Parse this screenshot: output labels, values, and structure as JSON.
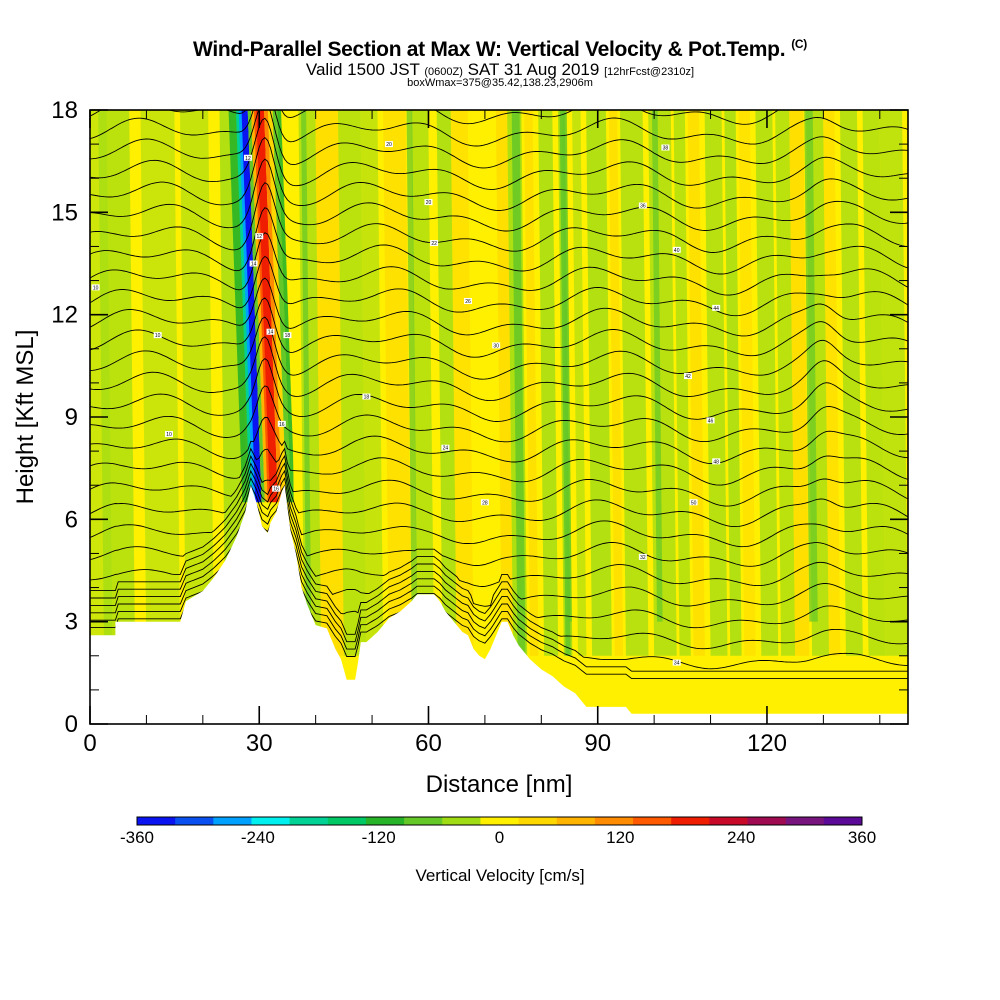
{
  "header": {
    "title": "Wind-Parallel Section at Max W: Vertical Velocity & Pot.Temp.",
    "copyright": "(C)",
    "valid_a": "Valid 1500 JST",
    "valid_b": "(0600Z)",
    "valid_c": "SAT 31 Aug 2019",
    "valid_d": "[12hrFcst@2310z]",
    "box_info": "boxWmax=375@35.42,138.23,2906m"
  },
  "chart_data": {
    "type": "heatmap",
    "title": "Wind-Parallel Section at Max W: Vertical Velocity & Pot.Temp.",
    "xlabel": "Distance [nm]",
    "ylabel": "Height [Kft MSL]",
    "xlim": [
      0,
      145
    ],
    "ylim": [
      0,
      18
    ],
    "x_ticks": [
      0,
      30,
      60,
      90,
      120
    ],
    "y_ticks": [
      0,
      3,
      6,
      9,
      12,
      15,
      18
    ],
    "grid": false,
    "colorbar": {
      "label": "Vertical Velocity [cm/s]",
      "placement": "bottom",
      "range": [
        -360,
        360
      ],
      "tick_values": [
        -360,
        -240,
        -120,
        0,
        120,
        240,
        360
      ],
      "colors": [
        "#0a14f0",
        "#0a50f0",
        "#00a0ff",
        "#00f0f0",
        "#00d296",
        "#00c864",
        "#28b428",
        "#64c828",
        "#a0dc14",
        "#fff000",
        "#ffd700",
        "#ffb400",
        "#ff8c00",
        "#ff5a00",
        "#f01e00",
        "#c80a28",
        "#a00a50",
        "#78147d",
        "#5a0a96"
      ]
    },
    "terrain_height_kft": [
      [
        0,
        2.6
      ],
      [
        4.5,
        2.6
      ],
      [
        4.5,
        3.0
      ],
      [
        16,
        3.0
      ],
      [
        17,
        3.6
      ],
      [
        20,
        3.9
      ],
      [
        22,
        4.3
      ],
      [
        24,
        4.8
      ],
      [
        26,
        5.5
      ],
      [
        27.5,
        6.2
      ],
      [
        28.5,
        7.0
      ],
      [
        29.5,
        6.5
      ],
      [
        30.5,
        5.8
      ],
      [
        31.5,
        5.6
      ],
      [
        32,
        5.9
      ],
      [
        33,
        6.2
      ],
      [
        34,
        6.8
      ],
      [
        34.5,
        7.0
      ],
      [
        35.5,
        5.7
      ],
      [
        36.5,
        5.0
      ],
      [
        37.5,
        4.0
      ],
      [
        38.5,
        3.5
      ],
      [
        40,
        2.9
      ],
      [
        42,
        2.8
      ],
      [
        43.5,
        2.2
      ],
      [
        44.5,
        1.9
      ],
      [
        45.5,
        1.3
      ],
      [
        46,
        1.3
      ],
      [
        47,
        1.3
      ],
      [
        47.5,
        1.8
      ],
      [
        48,
        2.4
      ],
      [
        49,
        2.4
      ],
      [
        51,
        2.7
      ],
      [
        52,
        2.9
      ],
      [
        53,
        3.1
      ],
      [
        55,
        3.3
      ],
      [
        57,
        3.6
      ],
      [
        58,
        3.8
      ],
      [
        61,
        3.8
      ],
      [
        62,
        3.6
      ],
      [
        63,
        3.3
      ],
      [
        64,
        3.1
      ],
      [
        66,
        2.7
      ],
      [
        67,
        2.6
      ],
      [
        68,
        2.2
      ],
      [
        69,
        2.0
      ],
      [
        70,
        1.9
      ],
      [
        71,
        2.2
      ],
      [
        72,
        2.6
      ],
      [
        73,
        3.0
      ],
      [
        74,
        3.0
      ],
      [
        75,
        2.6
      ],
      [
        76,
        2.3
      ],
      [
        78,
        1.9
      ],
      [
        80,
        1.6
      ],
      [
        82,
        1.4
      ],
      [
        84,
        1.1
      ],
      [
        86,
        0.9
      ],
      [
        87,
        0.7
      ],
      [
        88,
        0.5
      ],
      [
        95,
        0.5
      ],
      [
        96,
        0.3
      ],
      [
        145,
        0.3
      ]
    ],
    "contour_field": "potential temperature",
    "contour_labels": [
      "10",
      "10",
      "10",
      "12",
      "12",
      "14",
      "14",
      "16",
      "16",
      "18",
      "18",
      "20",
      "20",
      "22",
      "24",
      "26",
      "28",
      "30",
      "32",
      "34",
      "36",
      "38",
      "40",
      "42",
      "44",
      "46",
      "48",
      "50"
    ]
  }
}
